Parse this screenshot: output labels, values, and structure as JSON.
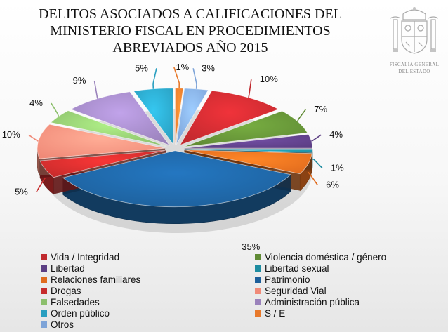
{
  "chart_data": {
    "type": "pie",
    "title": "DELITOS ASOCIADOS A CALIFICACIONES DEL\nMINISTERIO FISCAL EN PROCEDIMIENTOS\nABREVIADOS AÑO 2015",
    "slices": [
      {
        "name": "S / E",
        "value": 1,
        "label": "1%",
        "color": "#e8792b"
      },
      {
        "name": "Otros",
        "value": 3,
        "label": "3%",
        "color": "#7ea4d8"
      },
      {
        "name": "Vida / Integridad",
        "value": 10,
        "label": "10%",
        "color": "#c0292e"
      },
      {
        "name": "Violencia doméstica / género",
        "value": 7,
        "label": "7%",
        "color": "#5f8a34"
      },
      {
        "name": "Libertad",
        "value": 4,
        "label": "4%",
        "color": "#5b3e83"
      },
      {
        "name": "Libertad sexual",
        "value": 1,
        "label": "1%",
        "color": "#1d8ca0"
      },
      {
        "name": "Relaciones familiares",
        "value": 6,
        "label": "6%",
        "color": "#e06b1e"
      },
      {
        "name": "Patrimonio",
        "value": 35,
        "label": "35%",
        "color": "#1d5f9a"
      },
      {
        "name": "Drogas",
        "value": 5,
        "label": "5%",
        "color": "#c62b2b"
      },
      {
        "name": "Seguridad Vial",
        "value": 10,
        "label": "10%",
        "color": "#f08a78"
      },
      {
        "name": "Falsedades",
        "value": 4,
        "label": "4%",
        "color": "#8cbf6c"
      },
      {
        "name": "Administración pública",
        "value": 9,
        "label": "9%",
        "color": "#9a82bb"
      },
      {
        "name": "Orden público",
        "value": 5,
        "label": "5%",
        "color": "#2a9fc0"
      }
    ],
    "legend": {
      "placement": "bottom",
      "columns": 2,
      "items": [
        {
          "label": "Vida / Integridad",
          "color": "#c0292e"
        },
        {
          "label": "Violencia doméstica / género",
          "color": "#5f8a34"
        },
        {
          "label": "Libertad",
          "color": "#5b3e83"
        },
        {
          "label": "Libertad sexual",
          "color": "#1d8ca0"
        },
        {
          "label": "Relaciones familiares",
          "color": "#e06b1e"
        },
        {
          "label": "Patrimonio",
          "color": "#1d5f9a"
        },
        {
          "label": "Drogas",
          "color": "#c62b2b"
        },
        {
          "label": "Seguridad Vial",
          "color": "#f08a78"
        },
        {
          "label": "Falsedades",
          "color": "#8cbf6c"
        },
        {
          "label": "Administración pública",
          "color": "#9a82bb"
        },
        {
          "label": "Orden público",
          "color": "#2a9fc0"
        },
        {
          "label": "S / E",
          "color": "#e8792b"
        },
        {
          "label": "Otros",
          "color": "#7ea4d8"
        }
      ]
    },
    "style": "3d-exploded-pie"
  },
  "emblem": {
    "icon": "coat-of-arms-icon",
    "caption": "FISCALÍA GENERAL\nDEL ESTADO"
  }
}
